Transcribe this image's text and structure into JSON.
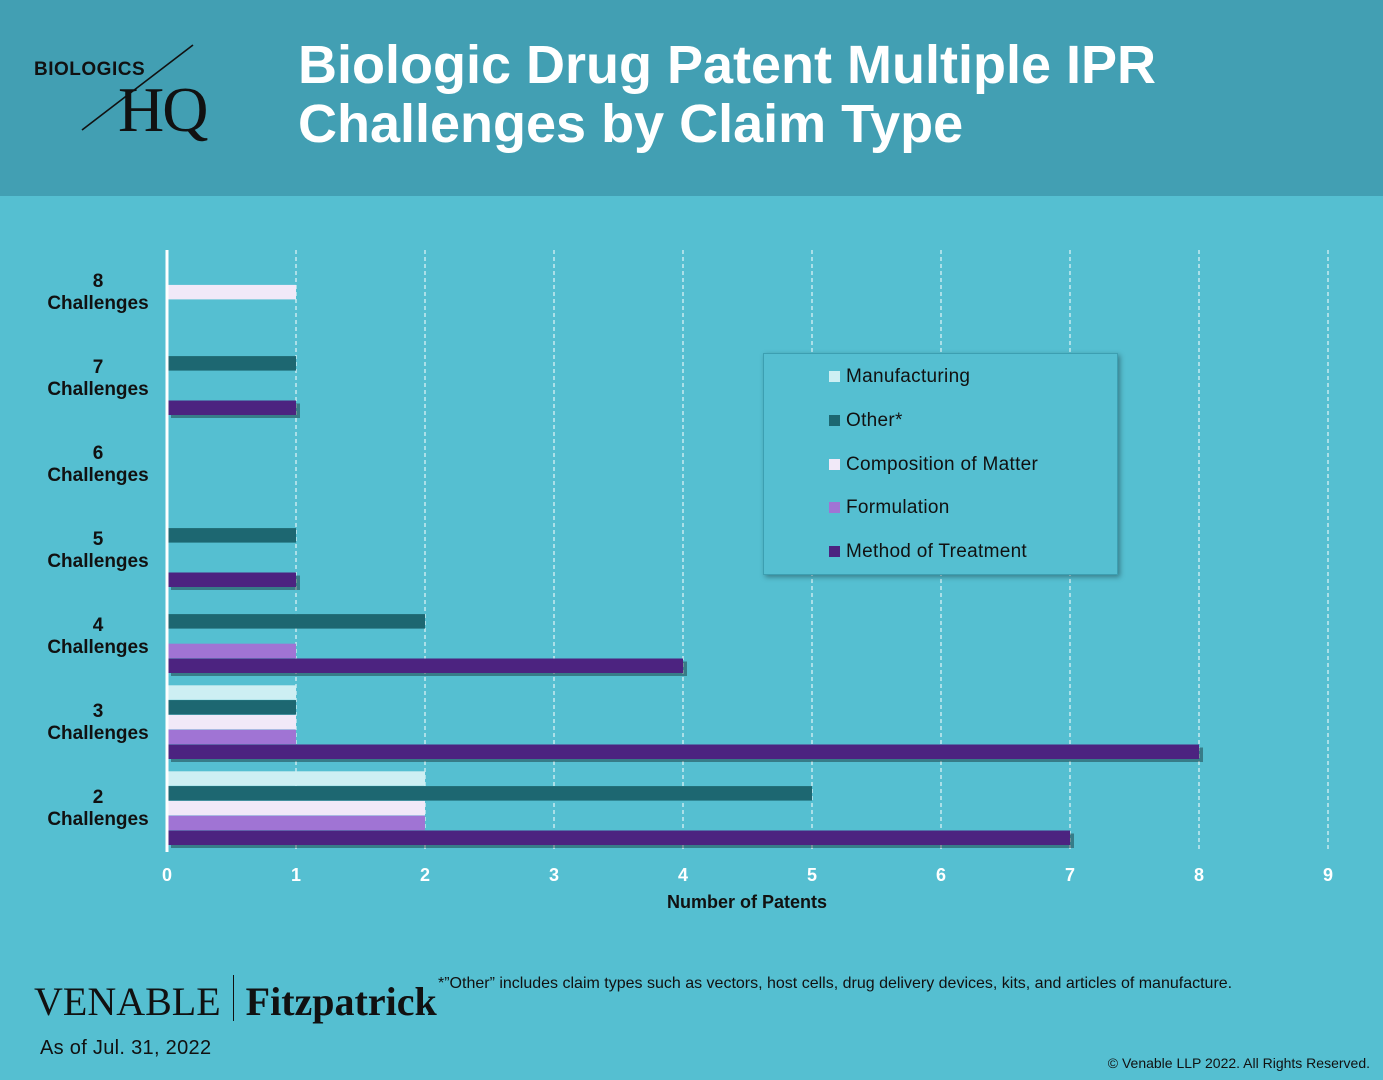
{
  "header": {
    "title": "Biologic Drug Patent Multiple IPR\nChallenges by Claim Type",
    "logo_top": "BIOLOGICS",
    "logo_bottom": "HQ",
    "bg_color": "#429fb3"
  },
  "chart_data": {
    "type": "bar",
    "orientation": "horizontal",
    "title": "",
    "xlabel": "Number of Patents",
    "ylabel": "",
    "xlim": [
      0,
      9
    ],
    "xticks": [
      0,
      1,
      2,
      3,
      4,
      5,
      6,
      7,
      8,
      9
    ],
    "grid": "vertical dashed",
    "legend_position": "right",
    "categories": [
      {
        "line1": "8",
        "line2": "Challenges"
      },
      {
        "line1": "7",
        "line2": "Challenges"
      },
      {
        "line1": "6",
        "line2": "Challenges"
      },
      {
        "line1": "5",
        "line2": "Challenges"
      },
      {
        "line1": "4",
        "line2": "Challenges"
      },
      {
        "line1": "3",
        "line2": "Challenges"
      },
      {
        "line1": "2",
        "line2": "Challenges"
      }
    ],
    "series": [
      {
        "name": "Manufacturing",
        "color": "#cdeff3",
        "values": [
          0,
          0,
          0,
          0,
          0,
          1,
          2
        ]
      },
      {
        "name": "Other*",
        "color": "#1d6771",
        "values": [
          0,
          1,
          0,
          1,
          2,
          1,
          5
        ]
      },
      {
        "name": "Composition of Matter",
        "color": "#f1e9f8",
        "values": [
          1,
          0,
          0,
          0,
          0,
          1,
          2
        ]
      },
      {
        "name": "Formulation",
        "color": "#a074d4",
        "values": [
          0,
          0,
          0,
          0,
          1,
          1,
          2
        ]
      },
      {
        "name": "Method of Treatment",
        "color": "#4c2380",
        "values": [
          0,
          1,
          0,
          1,
          4,
          8,
          7
        ]
      }
    ]
  },
  "footer": {
    "footnote": "*”Other” includes claim types such as vectors, host cells, drug delivery devices, kits, and articles of manufacture.",
    "firm_left": "VENABLE",
    "firm_right": "Fitzpatrick",
    "as_of": "As of Jul. 31, 2022",
    "copyright": "© Venable LLP 2022. All Rights Reserved."
  }
}
